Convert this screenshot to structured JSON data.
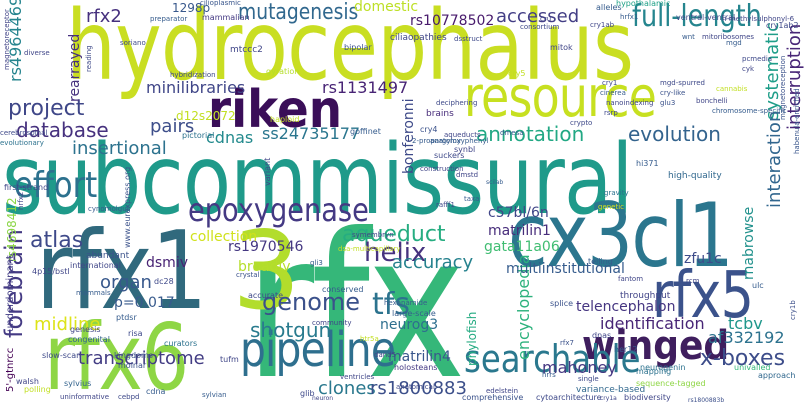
{
  "word_cloud": {
    "words": [
      {
        "text": "hydrocephalus",
        "color": "#c9de22"
      },
      {
        "text": "subcommissural",
        "color": "#1f9a8a"
      },
      {
        "text": "rfx",
        "color": "#35b779"
      },
      {
        "text": "rfx1",
        "color": "#30697d"
      },
      {
        "text": "3",
        "color": "#b2dd2c"
      },
      {
        "text": "rfx6",
        "color": "#8ed645"
      },
      {
        "text": "cx3cl1",
        "color": "#2b768e"
      },
      {
        "text": "riken",
        "color": "#3a0e58"
      },
      {
        "text": "resource",
        "color": "#c7e020"
      },
      {
        "text": "rfx5",
        "color": "#3b528b"
      },
      {
        "text": "winged",
        "color": "#3f1e5e"
      },
      {
        "text": "pipeline",
        "color": "#2e6f8e"
      },
      {
        "text": "searchable",
        "color": "#2a788e"
      },
      {
        "text": "epoxygenase",
        "color": "#443983"
      },
      {
        "text": "effort",
        "color": "#2c718e"
      },
      {
        "text": "mutagenesis",
        "color": "#31688e"
      },
      {
        "text": "full-length",
        "color": "#25858e"
      },
      {
        "text": "project",
        "color": "#3f4788"
      },
      {
        "text": "database",
        "color": "#46317e"
      },
      {
        "text": "annotation",
        "color": "#22a884"
      },
      {
        "text": "evolution",
        "color": "#33638d"
      },
      {
        "text": "aqueduct",
        "color": "#26ad81"
      },
      {
        "text": "helix",
        "color": "#46327e"
      },
      {
        "text": "genome",
        "color": "#3b518b"
      },
      {
        "text": "tfs",
        "color": "#2c738e"
      },
      {
        "text": "atlas",
        "color": "#3e4989"
      },
      {
        "text": "organ",
        "color": "#38588c"
      },
      {
        "text": "forebrain",
        "color": "#443a83"
      },
      {
        "text": "midline",
        "color": "#dde318"
      },
      {
        "text": "transcriptome",
        "color": "#433d84"
      },
      {
        "text": "shotgun",
        "color": "#297b8e"
      },
      {
        "text": "x-boxes",
        "color": "#3d4d8a"
      },
      {
        "text": "clones",
        "color": "#2a788e"
      },
      {
        "text": "rs1800883",
        "color": "#3c4f8a"
      },
      {
        "text": "accuracy",
        "color": "#26828e"
      },
      {
        "text": "encyclopedia",
        "color": "#2db27d"
      },
      {
        "text": "identification",
        "color": "#482576"
      },
      {
        "text": "tcbv",
        "color": "#1f978b"
      },
      {
        "text": "af332192",
        "color": "#2c728e"
      },
      {
        "text": "mahoney",
        "color": "#453781"
      },
      {
        "text": "insertional",
        "color": "#2c728e"
      },
      {
        "text": "minilibraries",
        "color": "#404688"
      },
      {
        "text": "rs1131497",
        "color": "#482475"
      },
      {
        "text": "pairs",
        "color": "#3d4e8a"
      },
      {
        "text": "cdnas",
        "color": "#238a8d"
      },
      {
        "text": "ss24735177",
        "color": "#2a768e"
      },
      {
        "text": "accessed",
        "color": "#433e85"
      },
      {
        "text": "rfx2",
        "color": "#46307e"
      },
      {
        "text": "1298p",
        "color": "#38588c"
      },
      {
        "text": "domestic",
        "color": "#bddf26"
      },
      {
        "text": "rs10778502",
        "color": "#481a6c"
      },
      {
        "text": "rs4964469",
        "color": "#25848e"
      },
      {
        "text": "rearrayed",
        "color": "#46307e"
      },
      {
        "text": "systematic",
        "color": "#1f9e89"
      },
      {
        "text": "interruption",
        "color": "#482677"
      },
      {
        "text": "interaction",
        "color": "#31668e"
      },
      {
        "text": "bonferonni",
        "color": "#3e4a89"
      },
      {
        "text": "matrilin1",
        "color": "#472d7b"
      },
      {
        "text": "c57bl/6n",
        "color": "#404688"
      },
      {
        "text": "gata11a06",
        "color": "#40bd72"
      },
      {
        "text": "zfu1c",
        "color": "#3e4c8a"
      },
      {
        "text": "dsmiv",
        "color": "#482374"
      },
      {
        "text": "rs1970546",
        "color": "#453882"
      },
      {
        "text": "broadly",
        "color": "#b5de2b"
      },
      {
        "text": "collection",
        "color": "#d0e11c"
      },
      {
        "text": "p=0.017",
        "color": "#375a8c"
      },
      {
        "text": "telencephalon",
        "color": "#453581"
      },
      {
        "text": "neurog3",
        "color": "#2e6e8e"
      },
      {
        "text": "matrilin4",
        "color": "#39568c"
      },
      {
        "text": "multiinstitutional",
        "color": "#365c8d"
      },
      {
        "text": "phylofish",
        "color": "#25ab82"
      },
      {
        "text": "rnabrowse",
        "color": "#21918c"
      },
      {
        "text": "d12s2072",
        "color": "#c2df23"
      },
      {
        "text": "rs4698412",
        "color": "#8bd646"
      },
      {
        "text": "5'-gtnrcc",
        "color": "#440154"
      },
      {
        "text": "underdominant",
        "color": "#433e85"
      },
      {
        "text": "rs1800883b",
        "color": "#3c4f8a"
      },
      {
        "text": "cilioplasmic",
        "color": "#39568c"
      },
      {
        "text": "mammalian",
        "color": "#443983"
      },
      {
        "text": "ciliaopathies",
        "color": "#404688"
      },
      {
        "text": "hypothalamic",
        "color": "#1fa187"
      },
      {
        "text": "alleles",
        "color": "#365c8d"
      },
      {
        "text": "brains",
        "color": "#472c7a"
      },
      {
        "text": "abundant",
        "color": "#3b528b"
      },
      {
        "text": "international",
        "color": "#404688"
      },
      {
        "text": "variance-based",
        "color": "#31688e"
      },
      {
        "text": "sequence-tagged",
        "color": "#8ed645"
      },
      {
        "text": "throughput",
        "color": "#414487"
      },
      {
        "text": "high-quality",
        "color": "#31688e"
      },
      {
        "text": "cry1b",
        "color": "#3c4f8a"
      },
      {
        "text": "gravity",
        "color": "#2c728e"
      },
      {
        "text": "magnetoreceptor",
        "color": "#414487"
      },
      {
        "text": "magnetoreception",
        "color": "#3b528b"
      },
      {
        "text": "habenula-enriched",
        "color": "#39568c"
      },
      {
        "text": "evolutionary",
        "color": "#2c728e"
      },
      {
        "text": "first-strand",
        "color": "#404688"
      },
      {
        "text": "cerebrospinal",
        "color": "#3e4989"
      },
      {
        "text": "conserved",
        "color": "#365c8d"
      },
      {
        "text": "congenital",
        "color": "#33638d"
      },
      {
        "text": "comprehensive",
        "color": "#3b528b"
      },
      {
        "text": "biodiversity",
        "color": "#404688"
      },
      {
        "text": "hexanamide",
        "color": "#365c8d"
      },
      {
        "text": "holosteans",
        "color": "#443983"
      },
      {
        "text": "neurogenin",
        "color": "#2c728e"
      },
      {
        "text": "approach",
        "color": "#31688e"
      },
      {
        "text": "univalled",
        "color": "#35b779"
      },
      {
        "text": "uninformative",
        "color": "#404688"
      },
      {
        "text": "kingdoms",
        "color": "#3b528b"
      },
      {
        "text": "curators",
        "color": "#2c728e"
      },
      {
        "text": "sylvius",
        "color": "#33638d"
      },
      {
        "text": "slow-scan",
        "color": "#3e4989"
      },
      {
        "text": "genesis",
        "color": "#404688"
      },
      {
        "text": "mammals",
        "color": "#365c8d"
      },
      {
        "text": "crystal",
        "color": "#3b528b"
      },
      {
        "text": "pictorial",
        "color": "#2c728e"
      },
      {
        "text": "reading",
        "color": "#3e4989"
      },
      {
        "text": "preparator",
        "color": "#365c8d"
      },
      {
        "text": "bipolar",
        "color": "#3b528b"
      },
      {
        "text": "variant",
        "color": "#404688"
      },
      {
        "text": "suckers",
        "color": "#3e4989"
      },
      {
        "text": "construction",
        "color": "#404688"
      },
      {
        "text": "telling",
        "color": "#365c8d"
      },
      {
        "text": "fantom",
        "color": "#404688"
      },
      {
        "text": "splice",
        "color": "#3b528b"
      },
      {
        "text": "community",
        "color": "#404688"
      },
      {
        "text": "large-scale",
        "color": "#365c8d"
      },
      {
        "text": "accurate",
        "color": "#3e4989"
      },
      {
        "text": "mapping",
        "color": "#2c728e"
      },
      {
        "text": "genetic",
        "color": "#d0e11c"
      },
      {
        "text": "haploid",
        "color": "#c2df23"
      },
      {
        "text": "gyration",
        "color": "#b5de2b"
      },
      {
        "text": "mtccc2",
        "color": "#404688"
      },
      {
        "text": "hybridization",
        "color": "#3e4989"
      },
      {
        "text": "cry5",
        "color": "#c2df23"
      },
      {
        "text": "mitok",
        "color": "#404688"
      },
      {
        "text": "hi371",
        "color": "#365c8d"
      },
      {
        "text": "cry4",
        "color": "#3b528b"
      },
      {
        "text": "cry1ab",
        "color": "#404688"
      },
      {
        "text": "ventral-ventral",
        "color": "#3e4989"
      },
      {
        "text": "hrfx1",
        "color": "#365c8d"
      },
      {
        "text": "synbl",
        "color": "#404688"
      },
      {
        "text": "nanoindexing",
        "color": "#3e4989"
      },
      {
        "text": "goffinet",
        "color": "#365c8d"
      },
      {
        "text": "symembryn",
        "color": "#404688"
      },
      {
        "text": "dsa-multicapillary",
        "color": "#c2df23"
      },
      {
        "text": "glu3",
        "color": "#3b528b"
      },
      {
        "text": "gli3",
        "color": "#365c8d"
      },
      {
        "text": "dc28",
        "color": "#3e4989"
      },
      {
        "text": "tufm",
        "color": "#404688"
      },
      {
        "text": "ptdsr",
        "color": "#365c8d"
      },
      {
        "text": "molnar",
        "color": "#3b528b"
      },
      {
        "text": "risa",
        "color": "#3e4989"
      },
      {
        "text": "htr5a",
        "color": "#c2df23"
      },
      {
        "text": "dand5",
        "color": "#404688"
      },
      {
        "text": "hrrs",
        "color": "#365c8d"
      },
      {
        "text": "anatomical",
        "color": "#3e4989"
      },
      {
        "text": "dnas",
        "color": "#404688"
      },
      {
        "text": "her12",
        "color": "#365c8d"
      },
      {
        "text": "single",
        "color": "#3e4989"
      },
      {
        "text": "www.eurexpress.org",
        "color": "#3b528b"
      },
      {
        "text": "4p15/bstl",
        "color": "#404688"
      },
      {
        "text": "cdna",
        "color": "#365c8d"
      },
      {
        "text": "glib",
        "color": "#3e4989"
      },
      {
        "text": "walsh",
        "color": "#404688"
      },
      {
        "text": "rfx7",
        "color": "#3b528b"
      },
      {
        "text": "ulc",
        "color": "#365c8d"
      },
      {
        "text": "polling",
        "color": "#c2df23"
      },
      {
        "text": "edelstein",
        "color": "#404688"
      },
      {
        "text": "soriano",
        "color": "#3e4989"
      },
      {
        "text": "cannabis",
        "color": "#c2df23"
      },
      {
        "text": "cinerea",
        "color": "#365c8d"
      },
      {
        "text": "rafff1",
        "color": "#404688"
      },
      {
        "text": "taxa",
        "color": "#3e4989"
      },
      {
        "text": "cry-like",
        "color": "#365c8d"
      },
      {
        "text": "mitoribosomes",
        "color": "#3b528b"
      },
      {
        "text": "sylvian",
        "color": "#404688"
      },
      {
        "text": "consortium",
        "color": "#365c8d"
      },
      {
        "text": "diverse",
        "color": "#3e4989"
      },
      {
        "text": "cytoarchitecture",
        "color": "#404688"
      },
      {
        "text": "2-propargyloxyphenyl",
        "color": "#3e4989"
      },
      {
        "text": "neuron",
        "color": "#365c8d"
      },
      {
        "text": "pcmedia",
        "color": "#404688"
      },
      {
        "text": "cyk",
        "color": "#3e4989"
      },
      {
        "text": "cry1ab2",
        "color": "#404688"
      },
      {
        "text": "cry1a",
        "color": "#365c8d"
      },
      {
        "text": "cynomolgus",
        "color": "#3e4989"
      },
      {
        "text": "cebpd",
        "color": "#404688"
      },
      {
        "text": "ventricles",
        "color": "#365c8d"
      },
      {
        "text": "anatomy",
        "color": "#3e4989"
      },
      {
        "text": "bonchelli",
        "color": "#404688"
      },
      {
        "text": "mgd-spurred",
        "color": "#365c8d"
      },
      {
        "text": "wnt",
        "color": "#404688"
      },
      {
        "text": "dmstd",
        "color": "#3e4989"
      },
      {
        "text": "cry1",
        "color": "#365c8d"
      },
      {
        "text": "n-methylsulphonyl-6",
        "color": "#404688"
      },
      {
        "text": "chromosome-specific",
        "color": "#3e4989"
      },
      {
        "text": "rsrp",
        "color": "#404688"
      },
      {
        "text": "cru",
        "color": "#365c8d"
      },
      {
        "text": "dmesa",
        "color": "#3e4989"
      },
      {
        "text": "dsstruct",
        "color": "#404688"
      },
      {
        "text": "hrfx2",
        "color": "#365c8d"
      },
      {
        "text": "scilab",
        "color": "#3e4989"
      },
      {
        "text": "deciphering",
        "color": "#404688"
      },
      {
        "text": "aqueducts",
        "color": "#365c8d"
      },
      {
        "text": "mgd",
        "color": "#3e4989"
      },
      {
        "text": "crypto",
        "color": "#404688"
      },
      {
        "text": "rcm",
        "color": "#365c8d"
      },
      {
        "text": "vhrp",
        "color": "#3e4989"
      },
      {
        "text": "weakly",
        "color": "#404688"
      }
    ]
  }
}
